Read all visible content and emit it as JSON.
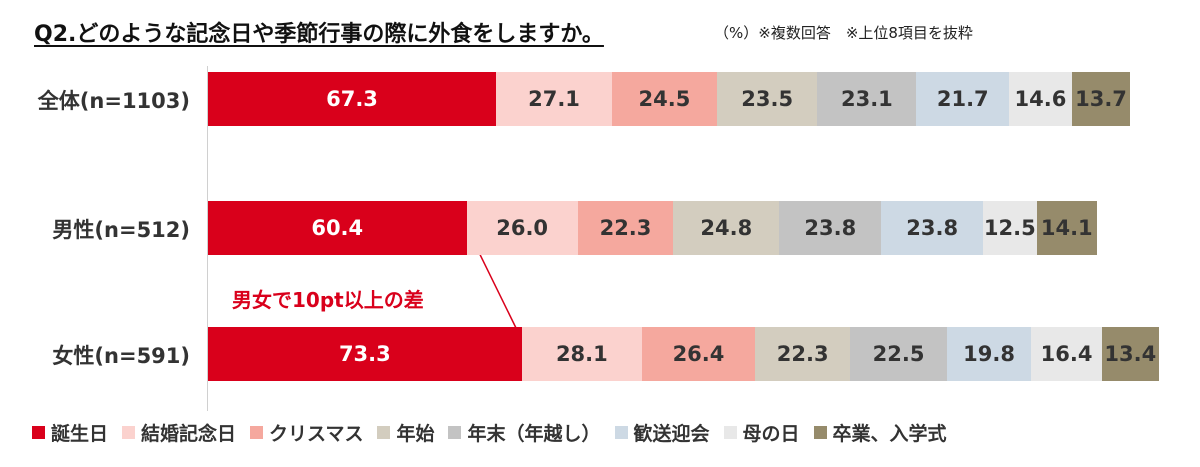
{
  "title": "Q2.どのような記念日や季節行事の際に外食をしますか。",
  "note": "（%）※複数回答　※上位8項目を抜粋",
  "annotation": "男女で10pt以上の差",
  "chart_data": {
    "type": "bar",
    "orientation": "horizontal",
    "stacked": true,
    "categories": [
      "全体(n=1103)",
      "男性(n=512)",
      "女性(n=591)"
    ],
    "series": [
      {
        "name": "誕生日",
        "color": "#d9001b",
        "values": [
          67.3,
          60.4,
          73.3
        ]
      },
      {
        "name": "結婚記念日",
        "color": "#fbd2ce",
        "values": [
          27.1,
          26.0,
          28.1
        ]
      },
      {
        "name": "クリスマス",
        "color": "#f5a89e",
        "values": [
          24.5,
          22.3,
          26.4
        ]
      },
      {
        "name": "年始",
        "color": "#d3cdbf",
        "values": [
          23.5,
          24.8,
          22.3
        ]
      },
      {
        "name": "年末（年越し）",
        "color": "#c3c3c3",
        "values": [
          23.1,
          23.8,
          22.5
        ]
      },
      {
        "name": "歓送迎会",
        "color": "#cdd9e4",
        "values": [
          21.7,
          23.8,
          19.8
        ]
      },
      {
        "name": "母の日",
        "color": "#e8e8e8",
        "values": [
          14.6,
          12.5,
          16.4
        ]
      },
      {
        "name": "卒業、入学式",
        "color": "#968b6b",
        "values": [
          13.7,
          14.1,
          13.4
        ]
      }
    ],
    "legend_position": "bottom",
    "grid": false
  }
}
